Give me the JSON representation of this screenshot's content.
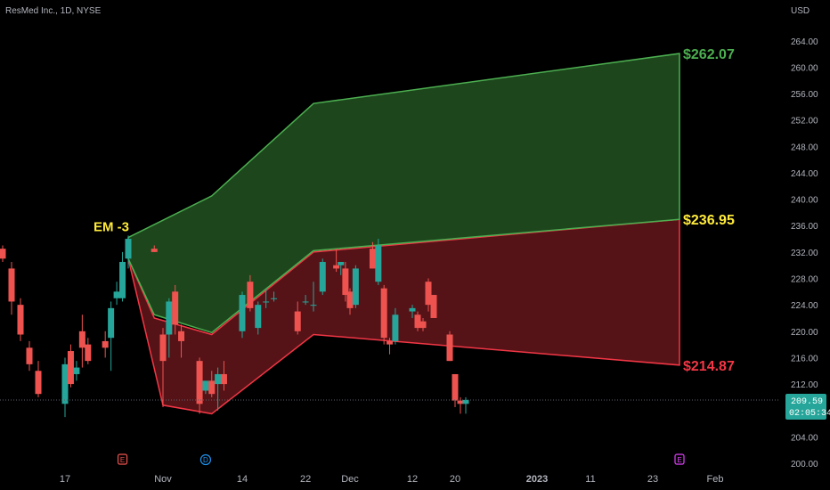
{
  "header": {
    "title": "ResMed Inc., 1D, NYSE",
    "currency": "USD"
  },
  "colors": {
    "up": "#26a69a",
    "down": "#ef5350",
    "green_zone_fill": "#1f4a1f",
    "green_zone_stroke": "#4caf50",
    "red_zone_fill": "#5a1418",
    "red_zone_stroke": "#f23645",
    "green_label": "#4caf50",
    "yellow_label": "#ffeb3b",
    "red_label": "#f23645",
    "badge_bg": "#26a69a"
  },
  "current_price": {
    "value": "209.59",
    "countdown": "02:05:34",
    "level": 209.59
  },
  "annotations": {
    "em_label": "EM -3",
    "upper": "$262.07",
    "middle": "$236.95",
    "lower": "$214.87"
  },
  "events": [
    {
      "letter": "E",
      "x": "Oct 27",
      "type": "earnings"
    },
    {
      "letter": "D",
      "x": "Nov 8",
      "type": "dividend"
    },
    {
      "letter": "E",
      "x": "Jan 26",
      "type": "earnings"
    }
  ],
  "chart_data": {
    "type": "candlestick",
    "title": "ResMed Inc., 1D, NYSE",
    "xlabel": "",
    "ylabel": "USD",
    "ylim": [
      199,
      268
    ],
    "y_ticks": [
      "200.00",
      "204.00",
      "208.00",
      "212.00",
      "216.00",
      "220.00",
      "224.00",
      "228.00",
      "232.00",
      "236.00",
      "240.00",
      "244.00",
      "248.00",
      "252.00",
      "256.00",
      "260.00",
      "264.00"
    ],
    "x_ticks": [
      {
        "label": "17",
        "date": "Oct 17"
      },
      {
        "label": "Nov",
        "date": "Nov 1"
      },
      {
        "label": "14",
        "date": "Nov 14"
      },
      {
        "label": "22",
        "date": "Nov 22"
      },
      {
        "label": "Dec",
        "date": "Dec 1"
      },
      {
        "label": "12",
        "date": "Dec 12"
      },
      {
        "label": "20",
        "date": "Dec 20"
      },
      {
        "label": "2023",
        "date": "Jan 2"
      },
      {
        "label": "11",
        "date": "Jan 11"
      },
      {
        "label": "23",
        "date": "Jan 23"
      },
      {
        "label": "Feb",
        "date": "Feb 1"
      }
    ],
    "grid": false,
    "candles": [
      {
        "date": "Oct 10",
        "o": 232.5,
        "h": 233.0,
        "l": 230.5,
        "c": 231.0
      },
      {
        "date": "Oct 11",
        "o": 229.5,
        "h": 230.5,
        "l": 222.5,
        "c": 224.5
      },
      {
        "date": "Oct 12",
        "o": 224.0,
        "h": 225.0,
        "l": 218.5,
        "c": 219.5
      },
      {
        "date": "Oct 13",
        "o": 217.5,
        "h": 218.5,
        "l": 214.0,
        "c": 215.0
      },
      {
        "date": "Oct 14",
        "o": 214.0,
        "h": 215.5,
        "l": 210.0,
        "c": 210.5
      },
      {
        "date": "Oct 17",
        "o": 209.0,
        "h": 216.0,
        "l": 207.0,
        "c": 215.0
      },
      {
        "date": "Oct 18",
        "o": 217.0,
        "h": 218.0,
        "l": 211.5,
        "c": 212.0
      },
      {
        "date": "Oct 19",
        "o": 213.5,
        "h": 215.5,
        "l": 212.5,
        "c": 214.5
      },
      {
        "date": "Oct 20",
        "o": 220.0,
        "h": 222.5,
        "l": 214.5,
        "c": 217.5
      },
      {
        "date": "Oct 21",
        "o": 218.0,
        "h": 219.0,
        "l": 215.0,
        "c": 215.5
      },
      {
        "date": "Oct 24",
        "o": 218.5,
        "h": 220.0,
        "l": 216.0,
        "c": 217.5
      },
      {
        "date": "Oct 25",
        "o": 219.0,
        "h": 224.5,
        "l": 214.0,
        "c": 223.5
      },
      {
        "date": "Oct 26",
        "o": 225.0,
        "h": 227.5,
        "l": 224.0,
        "c": 226.0
      },
      {
        "date": "Oct 27",
        "o": 225.0,
        "h": 232.0,
        "l": 224.5,
        "c": 230.5
      },
      {
        "date": "Oct 28",
        "o": 231.0,
        "h": 234.5,
        "l": 229.5,
        "c": 234.0
      },
      {
        "date": "Oct 31",
        "o": 232.5,
        "h": 233.0,
        "l": 232.0,
        "c": 232.0
      },
      {
        "date": "Nov 1",
        "o": 219.5,
        "h": 220.5,
        "l": 208.5,
        "c": 215.5
      },
      {
        "date": "Nov 2",
        "o": 219.5,
        "h": 225.0,
        "l": 216.0,
        "c": 224.5
      },
      {
        "date": "Nov 3",
        "o": 226.0,
        "h": 227.0,
        "l": 219.5,
        "c": 221.0
      },
      {
        "date": "Nov 4",
        "o": 220.0,
        "h": 221.0,
        "l": 216.0,
        "c": 218.5
      },
      {
        "date": "Nov 7",
        "o": 215.5,
        "h": 216.0,
        "l": 207.5,
        "c": 209.0
      },
      {
        "date": "Nov 8",
        "o": 211.0,
        "h": 212.5,
        "l": 210.5,
        "c": 212.5
      },
      {
        "date": "Nov 9",
        "o": 212.5,
        "h": 214.0,
        "l": 210.0,
        "c": 210.5
      },
      {
        "date": "Nov 10",
        "o": 212.0,
        "h": 214.5,
        "l": 208.0,
        "c": 213.5
      },
      {
        "date": "Nov 11",
        "o": 213.5,
        "h": 215.5,
        "l": 211.0,
        "c": 212.0
      },
      {
        "date": "Nov 14",
        "o": 220.0,
        "h": 226.0,
        "l": 219.0,
        "c": 225.5
      },
      {
        "date": "Nov 15",
        "o": 227.5,
        "h": 228.5,
        "l": 223.0,
        "c": 223.5
      },
      {
        "date": "Nov 16",
        "o": 220.5,
        "h": 224.5,
        "l": 219.5,
        "c": 224.0
      },
      {
        "date": "Nov 17",
        "o": 224.5,
        "h": 226.5,
        "l": 223.5,
        "c": 224.5
      },
      {
        "date": "Nov 18",
        "o": 225.0,
        "h": 226.0,
        "l": 224.5,
        "c": 225.0
      },
      {
        "date": "Nov 21",
        "o": 223.0,
        "h": 224.5,
        "l": 219.5,
        "c": 220.0
      },
      {
        "date": "Nov 22",
        "o": 224.5,
        "h": 225.5,
        "l": 224.0,
        "c": 224.5
      },
      {
        "date": "Nov 23",
        "o": 224.0,
        "h": 227.5,
        "l": 223.0,
        "c": 224.0
      },
      {
        "date": "Nov 25",
        "o": 226.0,
        "h": 231.0,
        "l": 225.5,
        "c": 230.5
      },
      {
        "date": "Nov 28",
        "o": 230.0,
        "h": 232.5,
        "l": 229.0,
        "c": 229.5
      },
      {
        "date": "Nov 29",
        "o": 230.0,
        "h": 230.5,
        "l": 228.5,
        "c": 230.5
      },
      {
        "date": "Nov 30",
        "o": 229.5,
        "h": 230.5,
        "l": 224.5,
        "c": 225.5
      },
      {
        "date": "Dec 1",
        "o": 226.0,
        "h": 226.5,
        "l": 222.5,
        "c": 223.5
      },
      {
        "date": "Dec 2",
        "o": 224.0,
        "h": 230.0,
        "l": 223.5,
        "c": 229.5
      },
      {
        "date": "Dec 5",
        "o": 232.5,
        "h": 233.5,
        "l": 229.5,
        "c": 229.5
      },
      {
        "date": "Dec 6",
        "o": 227.5,
        "h": 234.0,
        "l": 227.0,
        "c": 233.0
      },
      {
        "date": "Dec 7",
        "o": 226.5,
        "h": 227.0,
        "l": 218.0,
        "c": 219.0
      },
      {
        "date": "Dec 8",
        "o": 218.5,
        "h": 219.0,
        "l": 216.5,
        "c": 218.0
      },
      {
        "date": "Dec 9",
        "o": 218.5,
        "h": 223.5,
        "l": 218.0,
        "c": 222.5
      },
      {
        "date": "Dec 12",
        "o": 223.0,
        "h": 224.0,
        "l": 222.0,
        "c": 223.5
      },
      {
        "date": "Dec 13",
        "o": 222.5,
        "h": 223.0,
        "l": 220.0,
        "c": 220.5
      },
      {
        "date": "Dec 14",
        "o": 221.5,
        "h": 222.0,
        "l": 220.0,
        "c": 220.5
      },
      {
        "date": "Dec 15",
        "o": 227.5,
        "h": 228.0,
        "l": 223.0,
        "c": 224.0
      },
      {
        "date": "Dec 16",
        "o": 225.5,
        "h": 225.5,
        "l": 222.0,
        "c": 222.0
      },
      {
        "date": "Dec 19",
        "o": 219.5,
        "h": 220.0,
        "l": 215.5,
        "c": 215.5
      },
      {
        "date": "Dec 20",
        "o": 213.5,
        "h": 213.5,
        "l": 208.5,
        "c": 209.5
      },
      {
        "date": "Dec 21",
        "o": 209.5,
        "h": 210.0,
        "l": 207.5,
        "c": 209.0
      },
      {
        "date": "Dec 22",
        "o": 209.0,
        "h": 210.0,
        "l": 207.5,
        "c": 209.6
      }
    ],
    "zones": {
      "green": {
        "upper": [
          [
            "Oct 28",
            234.2
          ],
          [
            "Nov 9",
            240.5
          ],
          [
            "Nov 23",
            254.5
          ],
          [
            "Jan 26",
            262.07
          ]
        ],
        "lower": [
          [
            "Oct 28",
            231.0
          ],
          [
            "Oct 31",
            222.5
          ],
          [
            "Nov 9",
            219.8
          ],
          [
            "Nov 23",
            232.2
          ],
          [
            "Jan 26",
            236.95
          ]
        ]
      },
      "red": {
        "upper": [
          [
            "Oct 28",
            231.0
          ],
          [
            "Oct 31",
            222.0
          ],
          [
            "Nov 9",
            219.5
          ],
          [
            "Nov 23",
            232.0
          ],
          [
            "Jan 26",
            236.95
          ]
        ],
        "lower": [
          [
            "Oct 28",
            231.0
          ],
          [
            "Nov 1",
            208.8
          ],
          [
            "Nov 9",
            207.5
          ],
          [
            "Nov 23",
            219.5
          ],
          [
            "Jan 26",
            214.87
          ]
        ]
      }
    }
  }
}
